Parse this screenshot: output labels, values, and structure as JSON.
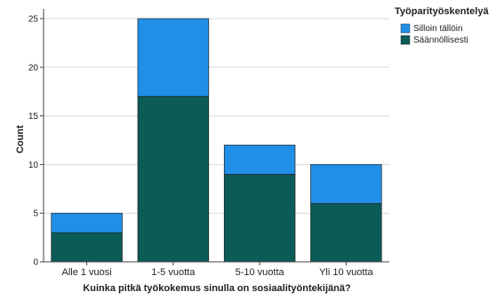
{
  "chart_data": {
    "type": "bar",
    "stacked": true,
    "categories": [
      "Alle 1 vuosi",
      "1-5 vuotta",
      "5-10 vuotta",
      "Yli 10 vuotta"
    ],
    "series": [
      {
        "name": "Säännöllisesti",
        "values": [
          3,
          17,
          9,
          6
        ],
        "color": "#0b5b57"
      },
      {
        "name": "Silloin tällöin",
        "values": [
          2,
          8,
          3,
          4
        ],
        "color": "#1f8fe8"
      }
    ],
    "xlabel": "Kuinka pitkä työkokemus sinulla on sosiaalityöntekijänä?",
    "ylabel": "Count",
    "ylim": [
      0,
      26
    ],
    "yticks": [
      0,
      5,
      10,
      15,
      20,
      25
    ],
    "grid": true,
    "legend": {
      "title": "Työparityöskentelyä",
      "placement": "top-right",
      "items": [
        "Silloin tällöin",
        "Säännöllisesti"
      ]
    }
  }
}
